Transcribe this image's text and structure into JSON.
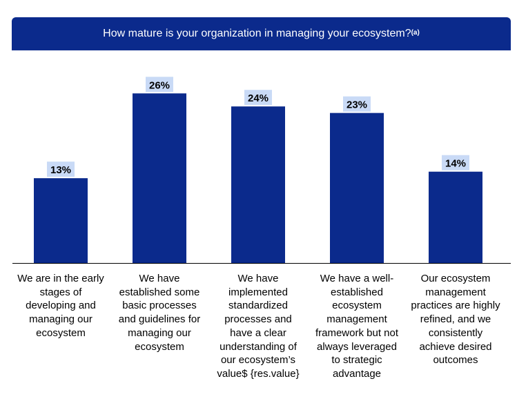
{
  "chart_data": {
    "type": "bar",
    "title": "How mature is your organization in managing your ecosystem?",
    "title_footnote": "(a)",
    "categories": [
      "We are in the early stages of developing and managing our ecosystem",
      "We have established some basic processes and guidelines for managing our ecosystem",
      "We have implemented standardized processes and have a clear understanding of our ecosystem’s value$ {res.value}",
      "We have a well-established ecosystem management framework but not always leveraged to strategic advantage",
      "Our ecosystem management practices are highly refined, and we consistently achieve desired outcomes"
    ],
    "values": [
      13,
      26,
      24,
      23,
      14
    ],
    "data_labels": [
      "13%",
      "26%",
      "24%",
      "23%",
      "14%"
    ],
    "unit": "%",
    "xlabel": "",
    "ylabel": "",
    "ylim": [
      0,
      30
    ],
    "grid": false,
    "bar_color": "#0b2a8c",
    "label_bg_color": "#c9daf6",
    "banner_color": "#0b2a8c"
  }
}
